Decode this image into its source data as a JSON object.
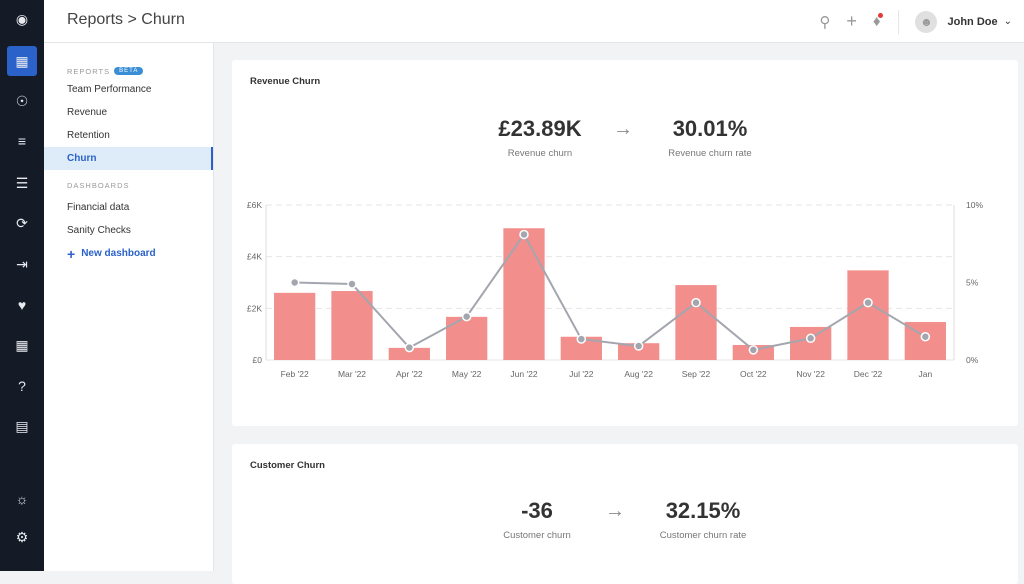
{
  "header": {
    "title": "Reports > Churn",
    "user": "John Doe"
  },
  "rail": {
    "icons": [
      "logo-icon",
      "dashboard-icon",
      "users-icon",
      "hierarchy-icon",
      "checklist-icon",
      "sync-icon",
      "import-icon",
      "health-icon",
      "calculator-icon",
      "help-icon",
      "chat-icon",
      "lightbulb-icon",
      "settings-icon"
    ]
  },
  "sidebar": {
    "reports_label": "REPORTS",
    "beta": "BETA",
    "reports": [
      "Team Performance",
      "Revenue",
      "Retention",
      "Churn"
    ],
    "active": "Churn",
    "dashboards_label": "DASHBOARDS",
    "dashboards": [
      "Financial data",
      "Sanity Checks"
    ],
    "new_dashboard": "New dashboard"
  },
  "revenue": {
    "title": "Revenue Churn",
    "value": "£23.89K",
    "value_label": "Revenue churn",
    "rate": "30.01%",
    "rate_label": "Revenue churn rate"
  },
  "customer": {
    "title": "Customer Churn",
    "value": "-36",
    "value_label": "Customer churn",
    "rate": "32.15%",
    "rate_label": "Customer churn rate"
  },
  "colors": {
    "bar": "#f28f8c",
    "line": "#a3a6ae",
    "accent": "#2a62c9",
    "rail": "#141a26"
  },
  "chart_data": {
    "type": "bar",
    "categories": [
      "Feb '22",
      "Mar '22",
      "Apr '22",
      "May '22",
      "Jun '22",
      "Jul '22",
      "Aug '22",
      "Sep '22",
      "Oct '22",
      "Nov '22",
      "Dec '22",
      "Jan"
    ],
    "series": [
      {
        "type": "bar",
        "axis": "left",
        "values": [
          2600,
          2670,
          470,
          1670,
          5100,
          900,
          650,
          2900,
          580,
          1280,
          3470,
          1470
        ]
      },
      {
        "type": "line",
        "axis": "right",
        "values": [
          5.0,
          4.9,
          0.8,
          2.8,
          8.1,
          1.35,
          0.9,
          3.7,
          0.65,
          1.4,
          3.7,
          1.5
        ]
      }
    ],
    "yleft": {
      "ylim": [
        0,
        6000
      ],
      "ticks": [
        "£0",
        "£2K",
        "£4K",
        "£6K"
      ]
    },
    "yright": {
      "ylim": [
        0,
        10
      ],
      "ticks": [
        "0%",
        "5%",
        "10%"
      ]
    },
    "grid": true
  }
}
